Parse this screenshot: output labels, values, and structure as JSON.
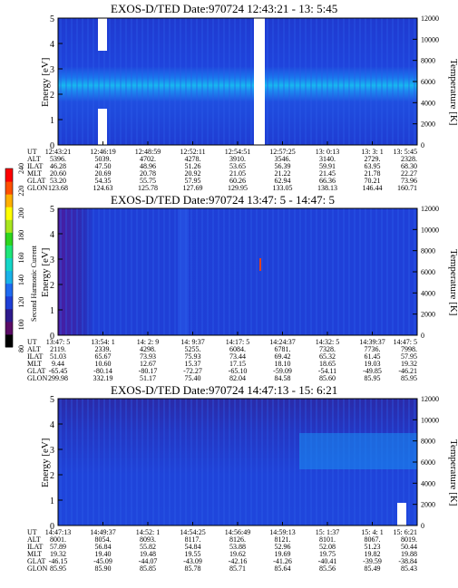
{
  "figure": {
    "width": 505,
    "height": 649
  },
  "colorbar": {
    "label": "Second Harmonic Current",
    "ticks": [
      "80",
      "100",
      "120",
      "140",
      "160",
      "180",
      "200",
      "220",
      "240"
    ],
    "colors": [
      "#000000",
      "#5a0c66",
      "#2e1a8c",
      "#1f3fd6",
      "#1f6af0",
      "#19b2e8",
      "#15d6c8",
      "#1ee67a",
      "#2ed61e",
      "#a8e61e",
      "#ffff00",
      "#ffb000",
      "#ff5000",
      "#ff0000"
    ]
  },
  "chart_data": [
    {
      "type": "heatmap",
      "title": "EXOS-D/TED   Date:970724   12:43:21 - 13: 5:45",
      "ylabel": "Energy [eV]",
      "ylabel_right": "Temperature [K]",
      "ylim": [
        0,
        5
      ],
      "ylim_right": [
        0,
        12000
      ],
      "yticks": [
        "0",
        "1",
        "2",
        "3",
        "4",
        "5"
      ],
      "yticks_right": [
        "0",
        "2000",
        "4000",
        "6000",
        "8000",
        "10000",
        "12000"
      ],
      "table": {
        "row_labels": [
          "UT",
          "ALT",
          "ILAT",
          "MLT",
          "GLAT",
          "GLON"
        ],
        "columns": [
          [
            "12:43:21",
            "5396.",
            "46.28",
            "20.60",
            "53.20",
            "123.68"
          ],
          [
            "12:46:19",
            "5039.",
            "47.50",
            "20.69",
            "54.35",
            "124.63"
          ],
          [
            "12:48:59",
            "4702.",
            "48.96",
            "20.78",
            "55.75",
            "125.78"
          ],
          [
            "12:52:11",
            "4278.",
            "51.26",
            "20.92",
            "57.95",
            "127.69"
          ],
          [
            "12:54:51",
            "3910.",
            "53.65",
            "21.05",
            "60.26",
            "129.95"
          ],
          [
            "12:57:25",
            "3546.",
            "56.39",
            "21.22",
            "62.94",
            "133.05"
          ],
          [
            "13: 0:13",
            "3140.",
            "59.91",
            "21.45",
            "66.36",
            "138.13"
          ],
          [
            "13: 3: 1",
            "2729.",
            "63.95",
            "21.78",
            "70.21",
            "146.44"
          ],
          [
            "13: 5:45",
            "2328.",
            "68.30",
            "22.27",
            "73.96",
            "160.71"
          ]
        ]
      }
    },
    {
      "type": "heatmap",
      "title": "EXOS-D/TED   Date:970724   13:47: 5 - 14:47: 5",
      "ylabel": "Energy [eV]",
      "ylabel_right": "Temperature [K]",
      "ylim": [
        0,
        5
      ],
      "ylim_right": [
        0,
        12000
      ],
      "yticks": [
        "0",
        "1",
        "2",
        "3",
        "4",
        "5"
      ],
      "yticks_right": [
        "0",
        "2000",
        "4000",
        "6000",
        "8000",
        "10000",
        "12000"
      ],
      "table": {
        "row_labels": [
          "UT",
          "ALT",
          "ILAT",
          "MLT",
          "GLAT",
          "GLON"
        ],
        "columns": [
          [
            "13:47: 5",
            "2119.",
            "51.03",
            "9.44",
            "-65.45",
            "299.98"
          ],
          [
            "13:54: 1",
            "2339.",
            "65.67",
            "10.60",
            "-80.14",
            "332.19"
          ],
          [
            "14: 2: 9",
            "4298.",
            "73.93",
            "12.67",
            "-80.17",
            "51.17"
          ],
          [
            "14: 9:37",
            "5255.",
            "75.93",
            "15.37",
            "-72.27",
            "75.40"
          ],
          [
            "14:17: 5",
            "6084.",
            "73.44",
            "17.15",
            "-65.10",
            "82.04"
          ],
          [
            "14:24:37",
            "6781.",
            "69.42",
            "18.10",
            "-59.09",
            "84.58"
          ],
          [
            "14:32: 5",
            "7328.",
            "65.32",
            "18.65",
            "-54.11",
            "85.60"
          ],
          [
            "14:39:37",
            "7736.",
            "61.45",
            "19.03",
            "-49.85",
            "85.95"
          ],
          [
            "14:47: 5",
            "7998.",
            "57.95",
            "19.32",
            "-46.21",
            "85.95"
          ]
        ]
      }
    },
    {
      "type": "heatmap",
      "title": "EXOS-D/TED   Date:970724   14:47:13 - 15: 6:21",
      "ylabel": "Energy [eV]",
      "ylabel_right": "Temperature [K]",
      "ylim": [
        0,
        5
      ],
      "ylim_right": [
        0,
        12000
      ],
      "yticks": [
        "0",
        "1",
        "2",
        "3",
        "4",
        "5"
      ],
      "yticks_right": [
        "0",
        "2000",
        "4000",
        "6000",
        "8000",
        "10000",
        "12000"
      ],
      "table": {
        "row_labels": [
          "UT",
          "ALT",
          "ILAT",
          "MLT",
          "GLAT",
          "GLON"
        ],
        "columns": [
          [
            "14:47:13",
            "8001.",
            "57.89",
            "19.32",
            "-46.15",
            "85.95"
          ],
          [
            "14:49:37",
            "8054.",
            "56.84",
            "19.40",
            "-45.09",
            "85.90"
          ],
          [
            "14:52: 1",
            "8093.",
            "55.82",
            "19.48",
            "-44.07",
            "85.85"
          ],
          [
            "14:54:25",
            "8117.",
            "54.84",
            "19.55",
            "-43.09",
            "85.78"
          ],
          [
            "14:56:49",
            "8126.",
            "53.88",
            "19.62",
            "-42.16",
            "85.71"
          ],
          [
            "14:59:13",
            "8121.",
            "52.96",
            "19.69",
            "-41.26",
            "85.64"
          ],
          [
            "15: 1:37",
            "8101.",
            "52.08",
            "19.75",
            "-40.41",
            "85.56"
          ],
          [
            "15: 4: 1",
            "8067.",
            "51.23",
            "19.82",
            "-39.59",
            "85.49"
          ],
          [
            "15: 6:21",
            "8019.",
            "50.44",
            "19.88",
            "-38.84",
            "85.43"
          ]
        ]
      }
    }
  ]
}
